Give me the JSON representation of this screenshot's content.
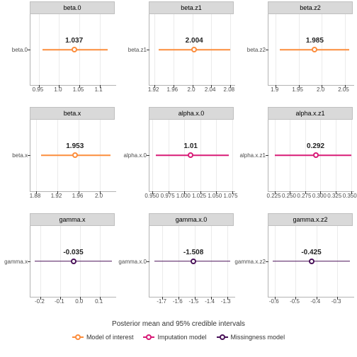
{
  "caption": "Posterior mean and 95% credible intervals",
  "strip_bg": "#d9d9d9",
  "strip_border": "#bfbfbf",
  "gridline_color": "#ebebeb",
  "colors": {
    "model": "#f8766d",
    "imputation": "#e7298a",
    "missing": "#5c1a66",
    "model_line": "#fc8d3c",
    "imp_line": "#d81b77",
    "miss_line": "#4a1259"
  },
  "series_colors": {
    "model": "#fc8d3c",
    "imputation": "#d81b77",
    "missing": "#4a1259"
  },
  "legend": [
    {
      "label": "Model of interest",
      "color": "#fc8d3c"
    },
    {
      "label": "Imputation model",
      "color": "#d81b77"
    },
    {
      "label": "Missingness model",
      "color": "#4a1259"
    }
  ],
  "panels": [
    {
      "title": "beta.0",
      "ylabel": "beta.0",
      "series": "model",
      "xmin": 0.93,
      "xmax": 1.14,
      "ticks": [
        0.95,
        1.0,
        1.05,
        1.1
      ],
      "value": 1.037,
      "lo": 0.96,
      "hi": 1.12,
      "value_text": "1.037"
    },
    {
      "title": "beta.z1",
      "ylabel": "beta.z1",
      "series": "model",
      "xmin": 1.91,
      "xmax": 2.09,
      "ticks": [
        1.92,
        1.96,
        2.0,
        2.04,
        2.08
      ],
      "value": 2.004,
      "lo": 1.93,
      "hi": 2.08,
      "value_text": "2.004"
    },
    {
      "title": "beta.z2",
      "ylabel": "beta.z2",
      "series": "model",
      "xmin": 1.885,
      "xmax": 2.07,
      "ticks": [
        1.9,
        1.95,
        2.0,
        2.05
      ],
      "value": 1.985,
      "lo": 1.91,
      "hi": 2.06,
      "value_text": "1.985"
    },
    {
      "title": "beta.x",
      "ylabel": "beta.x",
      "series": "model",
      "xmin": 1.87,
      "xmax": 2.03,
      "ticks": [
        1.88,
        1.92,
        1.96,
        2.0
      ],
      "value": 1.953,
      "lo": 1.89,
      "hi": 2.02,
      "value_text": "1.953"
    },
    {
      "title": "alpha.x.0",
      "ylabel": "alpha.x.0",
      "series": "imputation",
      "xmin": 0.945,
      "xmax": 1.08,
      "ticks": [
        0.95,
        0.975,
        1.0,
        1.025,
        1.05,
        1.075
      ],
      "value": 1.01,
      "lo": 0.955,
      "hi": 1.07,
      "value_text": "1.01"
    },
    {
      "title": "alpha.x.z1",
      "ylabel": "alpha.x.z1",
      "series": "imputation",
      "xmin": 0.215,
      "xmax": 0.355,
      "ticks": [
        0.225,
        0.25,
        0.275,
        0.3,
        0.325,
        0.35
      ],
      "value": 0.292,
      "lo": 0.225,
      "hi": 0.35,
      "value_text": "0.292"
    },
    {
      "title": "gamma.x",
      "ylabel": "gamma.x",
      "series": "missing",
      "xmin": -0.25,
      "xmax": 0.18,
      "ticks": [
        -0.2,
        -0.1,
        0.0,
        0.1
      ],
      "value": -0.035,
      "lo": -0.23,
      "hi": 0.16,
      "value_text": "-0.035"
    },
    {
      "title": "gamma.x.0",
      "ylabel": "gamma.x.0",
      "series": "missing",
      "xmin": -1.78,
      "xmax": -1.25,
      "ticks": [
        -1.7,
        -1.6,
        -1.5,
        -1.4,
        -1.3
      ],
      "value": -1.508,
      "lo": -1.75,
      "hi": -1.28,
      "value_text": "-1.508"
    },
    {
      "title": "gamma.x.z2",
      "ylabel": "gamma.x.z2",
      "series": "missing",
      "xmin": -0.63,
      "xmax": -0.22,
      "ticks": [
        -0.6,
        -0.5,
        -0.4,
        -0.3
      ],
      "value": -0.425,
      "lo": -0.61,
      "hi": -0.24,
      "value_text": "-0.425"
    }
  ]
}
